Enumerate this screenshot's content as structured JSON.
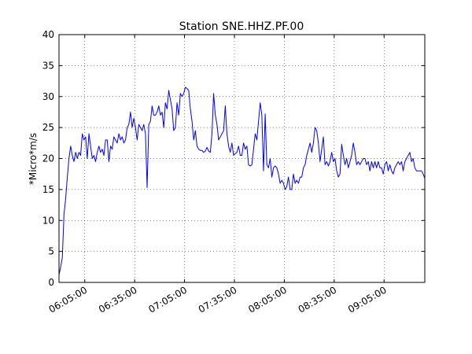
{
  "chart_data": {
    "type": "line",
    "title": "Station SNE.HHZ.PF.00",
    "y_label": "*Micro*m/s",
    "x": [
      "05:49:30",
      "05:50:30",
      "05:51:30",
      "05:52:30",
      "05:53:30",
      "05:54:30",
      "05:55:30",
      "05:56:30",
      "05:57:30",
      "05:58:30",
      "05:59:30",
      "06:00:30",
      "06:01:30",
      "06:02:30",
      "06:03:30",
      "06:04:30",
      "06:05:30",
      "06:06:30",
      "06:07:30",
      "06:08:30",
      "06:09:30",
      "06:10:30",
      "06:11:30",
      "06:12:30",
      "06:13:30",
      "06:14:30",
      "06:15:30",
      "06:16:30",
      "06:17:30",
      "06:18:30",
      "06:19:30",
      "06:20:30",
      "06:21:30",
      "06:22:30",
      "06:23:30",
      "06:24:30",
      "06:25:30",
      "06:26:30",
      "06:27:30",
      "06:28:30",
      "06:29:30",
      "06:30:30",
      "06:31:30",
      "06:32:30",
      "06:33:30",
      "06:34:30",
      "06:35:30",
      "06:36:30",
      "06:37:30",
      "06:38:30",
      "06:39:30",
      "06:40:30",
      "06:41:30",
      "06:42:30",
      "06:43:30",
      "06:44:30",
      "06:45:30",
      "06:46:30",
      "06:47:30",
      "06:48:30",
      "06:49:30",
      "06:50:30",
      "06:51:30",
      "06:52:30",
      "06:53:30",
      "06:54:30",
      "06:55:30",
      "06:56:30",
      "06:57:30",
      "06:58:30",
      "06:59:30",
      "07:00:30",
      "07:01:30",
      "07:02:30",
      "07:03:30",
      "07:04:30",
      "07:05:30",
      "07:06:30",
      "07:07:30",
      "07:08:30",
      "07:09:30",
      "07:10:30",
      "07:11:30",
      "07:12:30",
      "07:13:30",
      "07:14:30",
      "07:15:30",
      "07:16:30",
      "07:17:30",
      "07:18:30",
      "07:19:30",
      "07:20:30",
      "07:21:30",
      "07:22:30",
      "07:23:30",
      "07:24:30",
      "07:25:30",
      "07:26:30",
      "07:27:30",
      "07:28:30",
      "07:29:30",
      "07:30:30",
      "07:31:30",
      "07:32:30",
      "07:33:30",
      "07:34:30",
      "07:35:30",
      "07:36:30",
      "07:37:30",
      "07:38:30",
      "07:39:30",
      "07:40:30",
      "07:41:30",
      "07:42:30",
      "07:43:30",
      "07:44:30",
      "07:45:30",
      "07:46:30",
      "07:47:30",
      "07:48:30",
      "07:49:30",
      "07:50:30",
      "07:51:30",
      "07:52:30",
      "07:53:30",
      "07:54:30",
      "07:55:30",
      "07:56:30",
      "07:57:30",
      "07:58:30",
      "07:59:30",
      "08:00:30",
      "08:01:30",
      "08:02:30",
      "08:03:30",
      "08:04:30",
      "08:05:30",
      "08:06:30",
      "08:07:30",
      "08:08:30",
      "08:09:30",
      "08:10:30",
      "08:11:30",
      "08:12:30",
      "08:13:30",
      "08:14:30",
      "08:15:30",
      "08:16:30",
      "08:17:30",
      "08:18:30",
      "08:19:30",
      "08:20:30",
      "08:21:30",
      "08:22:30",
      "08:23:30",
      "08:24:30",
      "08:25:30",
      "08:26:30",
      "08:27:30",
      "08:28:30",
      "08:29:30",
      "08:30:30",
      "08:31:30",
      "08:32:30",
      "08:33:30",
      "08:34:30",
      "08:35:30",
      "08:36:30",
      "08:37:30",
      "08:38:30",
      "08:39:30",
      "08:40:30",
      "08:41:30",
      "08:42:30",
      "08:43:30",
      "08:44:30",
      "08:45:30",
      "08:46:30",
      "08:47:30",
      "08:48:30",
      "08:49:30",
      "08:50:30",
      "08:51:30",
      "08:52:30",
      "08:53:30",
      "08:54:30",
      "08:55:30",
      "08:56:30",
      "08:57:30",
      "08:58:30",
      "08:59:30",
      "09:00:30",
      "09:01:30",
      "09:02:30",
      "09:03:30",
      "09:04:30",
      "09:05:30",
      "09:06:30",
      "09:07:30",
      "09:08:30",
      "09:09:30",
      "09:10:30",
      "09:11:30",
      "09:12:30",
      "09:13:30",
      "09:14:30",
      "09:15:30",
      "09:16:30",
      "09:17:30",
      "09:18:30",
      "09:19:30",
      "09:20:30",
      "09:21:30",
      "09:22:30",
      "09:23:30",
      "09:24:30",
      "09:25:30",
      "09:26:30",
      "09:27:30",
      "09:28:30",
      "09:29:30"
    ],
    "series": [
      {
        "color": "#0000ff",
        "values": [
          1.2,
          2.5,
          4,
          11,
          13.5,
          17,
          20,
          22,
          20.5,
          19.5,
          21,
          20,
          21,
          20.5,
          24,
          23,
          23.5,
          20,
          24,
          22,
          20,
          20.5,
          19.5,
          21,
          22,
          21,
          21.5,
          20.5,
          23,
          23,
          19.5,
          22,
          21.5,
          23.5,
          23,
          22.5,
          24,
          23,
          23.5,
          22.5,
          23,
          25,
          25.5,
          27.5,
          25,
          26.5,
          25,
          23,
          25.5,
          25,
          24.5,
          25.5,
          24,
          15.3,
          25.5,
          26,
          28.5,
          27,
          27,
          27.5,
          28.5,
          27,
          27.5,
          25,
          29,
          28,
          31,
          29.5,
          28,
          24.5,
          25,
          29,
          27,
          30.5,
          30,
          30.5,
          31.5,
          31.3,
          31,
          28,
          26,
          23,
          24.5,
          22,
          21.5,
          21.3,
          21.3,
          21,
          21.2,
          21.8,
          21.2,
          21,
          24,
          30.5,
          27,
          25.5,
          23,
          23.5,
          24,
          24.5,
          28.5,
          24,
          22,
          21,
          22.5,
          20.5,
          20.8,
          21,
          22,
          20.5,
          20.5,
          22.5,
          21.5,
          22,
          19,
          18.8,
          19,
          21.5,
          24,
          23,
          26,
          29,
          27,
          18,
          27.2,
          19,
          18.5,
          20,
          17,
          18.5,
          18.8,
          18.5,
          17.5,
          16,
          16.5,
          16,
          15,
          15.5,
          17,
          15,
          15,
          17.5,
          16,
          16.5,
          16,
          17,
          17,
          18.5,
          19,
          20.5,
          21.5,
          22.5,
          21,
          22.5,
          25,
          24.5,
          22.5,
          19.5,
          21.5,
          23.5,
          19,
          19.5,
          18.8,
          19.5,
          21,
          19.5,
          20,
          18,
          17,
          17.5,
          22.3,
          20.5,
          19,
          20,
          18.5,
          19.5,
          20.5,
          22.5,
          21,
          19,
          19.5,
          19,
          19.5,
          20,
          20,
          19,
          19.5,
          18,
          19.5,
          18.5,
          19.5,
          18.5,
          19.5,
          18.5,
          18.5,
          17.5,
          19,
          19.5,
          18,
          19,
          18,
          17.5,
          18.5,
          19,
          19.5,
          19,
          19.5,
          18,
          19.5,
          20,
          20.5,
          21,
          19.5,
          20,
          18.5,
          18,
          18,
          18,
          18,
          17.5,
          16.8
        ]
      }
    ],
    "xlim": [
      "05:49:30",
      "09:29:30"
    ],
    "xticks": [
      "06:05:00",
      "06:35:00",
      "07:05:00",
      "07:35:00",
      "08:05:00",
      "08:35:00",
      "09:05:00"
    ],
    "ylim": [
      0,
      40
    ],
    "yticks": [
      0,
      5,
      10,
      15,
      20,
      25,
      30,
      35,
      40
    ],
    "grid": true
  }
}
